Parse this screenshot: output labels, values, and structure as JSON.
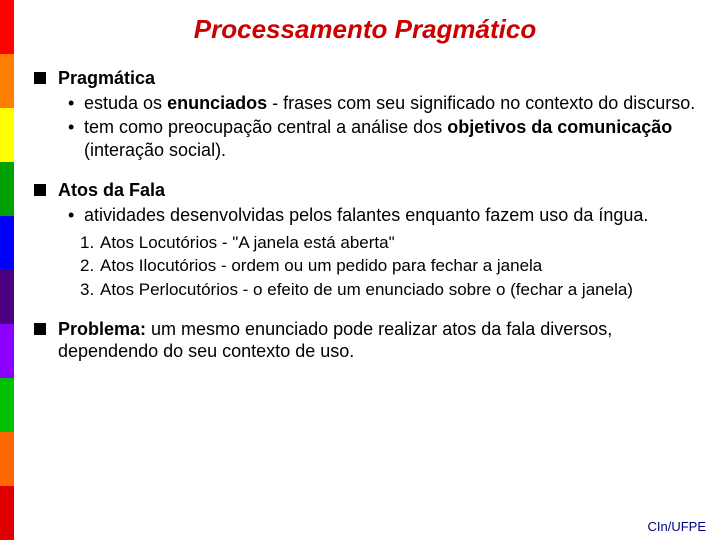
{
  "stripe_colors": [
    "#ff0000",
    "#ff7f00",
    "#ffff00",
    "#00a000",
    "#0000ff",
    "#4b0082",
    "#8b00ff",
    "#00c000",
    "#ff6600",
    "#e00000"
  ],
  "title": {
    "text": "Processamento Pragmático",
    "color": "#cc0000",
    "fontsize": 26
  },
  "body": {
    "fontsize": 18,
    "color": "#000000",
    "line_height": 1.25
  },
  "numlist_fontsize": 17,
  "footer": {
    "text": "CIn/UFPE",
    "color": "#000080",
    "fontsize": 13
  },
  "sections": [
    {
      "head": "Pragmática",
      "bullets": [
        {
          "pre": "estuda os ",
          "b1": "enunciados",
          "post": " - frases com seu significado no contexto do discurso."
        },
        {
          "pre": "tem como preocupação central a análise dos ",
          "b1": "objetivos da comunicação",
          "post": " (interação social)."
        }
      ]
    },
    {
      "head": "Atos da Fala",
      "bullets": [
        {
          "pre": "atividades desenvolvidas pelos falantes enquanto fazem uso da íngua.",
          "b1": "",
          "post": ""
        }
      ],
      "numbered": [
        {
          "n": "1.",
          "text": "Atos Locutórios - \"A janela está aberta\""
        },
        {
          "n": "2.",
          "text": "Atos Ilocutórios - ordem ou um pedido para fechar a janela"
        },
        {
          "n": "3.",
          "text": "Atos Perlocutórios - o efeito de um enunciado sobre o (fechar a janela)"
        }
      ]
    },
    {
      "head_inline": "Problema:",
      "tail": " um mesmo enunciado pode realizar atos da fala diversos, dependendo do seu contexto de uso."
    }
  ]
}
